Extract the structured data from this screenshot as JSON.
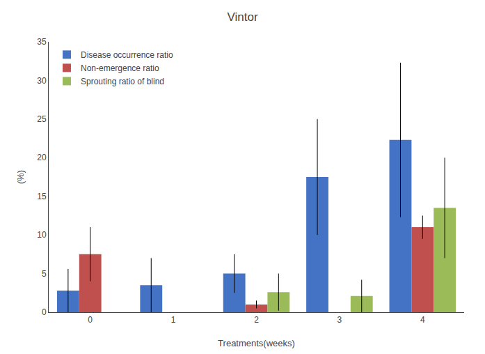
{
  "chart_data": {
    "type": "bar",
    "title": "Vintor",
    "xlabel": "Treatments(weeks)",
    "ylabel": "(%)",
    "categories": [
      0,
      1,
      2,
      3,
      4
    ],
    "series": [
      {
        "name": "Disease occurrence ratio",
        "color": "#4472C4",
        "values": [
          2.8,
          3.5,
          5.0,
          17.5,
          22.3
        ],
        "errors": [
          2.8,
          3.5,
          2.5,
          7.5,
          10.0
        ]
      },
      {
        "name": "Non-emergence ratio",
        "color": "#C0504D",
        "values": [
          7.5,
          0.0,
          1.0,
          0.0,
          11.0
        ],
        "errors": [
          3.5,
          0.0,
          0.5,
          0.0,
          1.5
        ]
      },
      {
        "name": "Sprouting ratio of blind",
        "color": "#9BBB59",
        "values": [
          0.0,
          0.0,
          2.6,
          2.1,
          13.5
        ],
        "errors": [
          0.0,
          0.0,
          2.4,
          2.1,
          6.5
        ]
      }
    ],
    "ylim": [
      0,
      35
    ],
    "yticks": [
      0,
      5,
      10,
      15,
      20,
      25,
      30,
      35
    ],
    "grid": false,
    "legend": "upper left"
  }
}
